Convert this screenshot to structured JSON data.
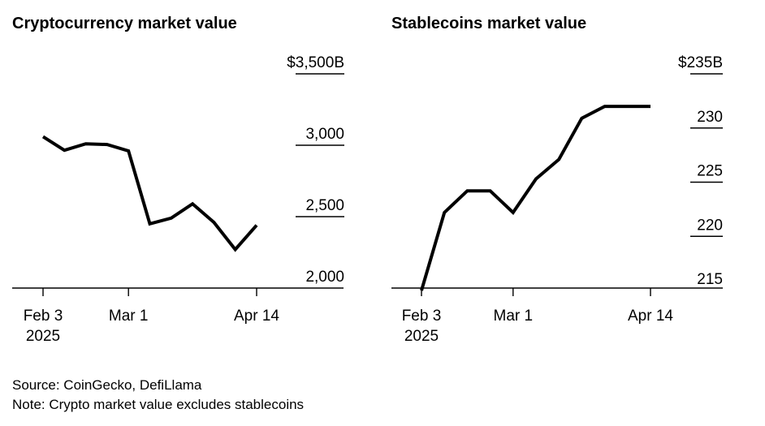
{
  "chart_data": [
    {
      "type": "line",
      "title": "Cryptocurrency market value",
      "x_start_label": "Feb 3",
      "x_start_year": "2025",
      "x_ticks": [
        "Feb 3",
        "Mar 1",
        "Apr 14"
      ],
      "x_tick_index": [
        0,
        4,
        10
      ],
      "ylim": [
        2000,
        3500
      ],
      "y_ticks": [
        3500,
        3000,
        2500,
        2000
      ],
      "y_tick_labels": [
        "$3,500B",
        "3,000",
        "2,500",
        "2,000"
      ],
      "ylabel": "",
      "xlabel": "",
      "values": [
        3060,
        2965,
        3010,
        3005,
        2960,
        2450,
        2490,
        2590,
        2460,
        2270,
        2440
      ]
    },
    {
      "type": "line",
      "title": "Stablecoins market value",
      "x_start_label": "Feb 3",
      "x_start_year": "2025",
      "x_ticks": [
        "Feb 3",
        "Mar 1",
        "Apr 14"
      ],
      "x_tick_index": [
        0,
        4,
        10
      ],
      "ylim": [
        215,
        235
      ],
      "y_ticks": [
        235,
        230,
        225,
        220,
        215
      ],
      "y_tick_labels": [
        "$235B",
        "230",
        "225",
        "220",
        "215"
      ],
      "ylabel": "",
      "xlabel": "",
      "values": [
        215.0,
        222.2,
        224.2,
        224.2,
        222.2,
        225.3,
        227.1,
        230.9,
        232.0,
        232.0,
        232.0
      ]
    }
  ],
  "footer": {
    "source": "Source: CoinGecko, DefiLlama",
    "note": "Note: Crypto market value excludes stablecoins"
  }
}
